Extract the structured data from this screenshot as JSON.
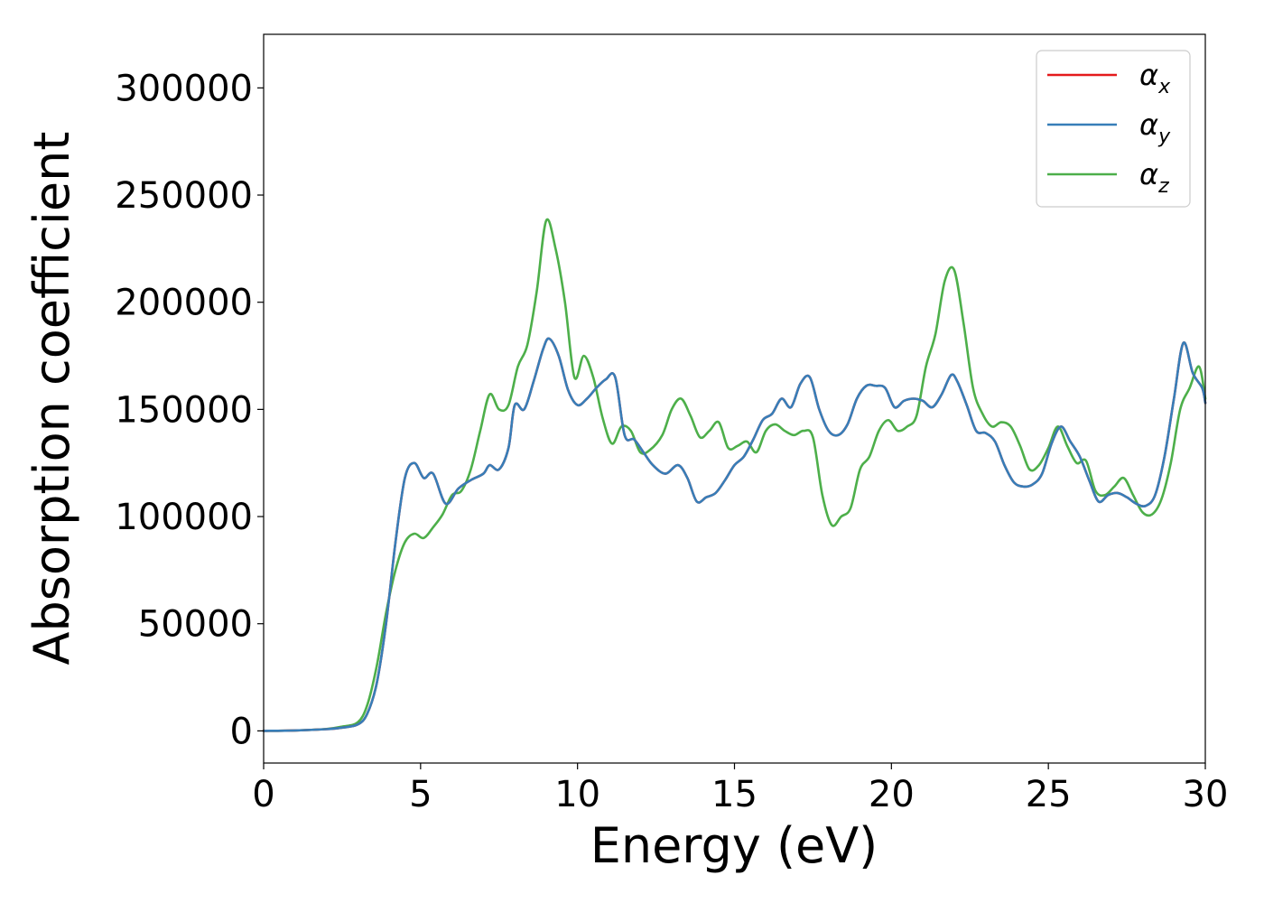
{
  "chart_data": {
    "type": "line",
    "title": "",
    "xlabel": "Energy (eV)",
    "ylabel": "Absorption coefficient",
    "xlim": [
      0,
      30
    ],
    "ylim": [
      -15000,
      325000
    ],
    "xticks": [
      0,
      5,
      10,
      15,
      20,
      25,
      30
    ],
    "yticks": [
      0,
      50000,
      100000,
      150000,
      200000,
      250000,
      300000
    ],
    "grid": false,
    "legend_position": "top-right",
    "series": [
      {
        "name": "α",
        "subscript": "x",
        "color": "#e41a1c",
        "x": [
          0,
          1,
          2,
          2.5,
          3,
          3.3,
          3.6,
          3.9,
          4.2,
          4.5,
          4.8,
          5.1,
          5.4,
          5.8,
          6.2,
          6.6,
          7.0,
          7.2,
          7.5,
          7.8,
          8.0,
          8.3,
          8.6,
          8.9,
          9.1,
          9.4,
          9.7,
          10.0,
          10.3,
          10.6,
          10.9,
          11.2,
          11.5,
          11.8,
          12.1,
          12.4,
          12.8,
          13.2,
          13.5,
          13.8,
          14.1,
          14.4,
          14.7,
          15.0,
          15.3,
          15.6,
          15.9,
          16.2,
          16.5,
          16.8,
          17.1,
          17.4,
          17.7,
          18.0,
          18.3,
          18.6,
          18.9,
          19.2,
          19.5,
          19.8,
          20.1,
          20.4,
          20.7,
          21.0,
          21.3,
          21.6,
          21.9,
          22.1,
          22.4,
          22.7,
          23.0,
          23.3,
          23.6,
          23.9,
          24.2,
          24.5,
          24.8,
          25.1,
          25.4,
          25.7,
          26.0,
          26.3,
          26.6,
          26.9,
          27.2,
          27.5,
          27.8,
          28.1,
          28.4,
          28.7,
          29.0,
          29.3,
          29.6,
          29.9,
          30.0
        ],
        "y": [
          0,
          200,
          800,
          1500,
          3000,
          8000,
          22000,
          50000,
          88000,
          118000,
          125000,
          118000,
          120000,
          106000,
          113000,
          117000,
          120000,
          124000,
          122000,
          132000,
          152000,
          150000,
          163000,
          178000,
          183000,
          175000,
          159000,
          152000,
          155000,
          160000,
          164000,
          165000,
          138000,
          136000,
          130000,
          124000,
          120000,
          124000,
          118000,
          107000,
          109000,
          111000,
          117000,
          124000,
          128000,
          136000,
          145000,
          148000,
          155000,
          151000,
          162000,
          165000,
          150000,
          140000,
          138000,
          143000,
          155000,
          161000,
          161000,
          160000,
          151000,
          154000,
          155000,
          154000,
          151000,
          157000,
          166000,
          163000,
          152000,
          140000,
          139000,
          135000,
          124000,
          116000,
          114000,
          115000,
          120000,
          134000,
          142000,
          135000,
          128000,
          117000,
          107000,
          110000,
          111000,
          109000,
          106000,
          105000,
          110000,
          128000,
          155000,
          181000,
          167000,
          160000,
          153000
        ]
      },
      {
        "name": "α",
        "subscript": "y",
        "color": "#377eb8",
        "x": [
          0,
          1,
          2,
          2.5,
          3,
          3.3,
          3.6,
          3.9,
          4.2,
          4.5,
          4.8,
          5.1,
          5.4,
          5.8,
          6.2,
          6.6,
          7.0,
          7.2,
          7.5,
          7.8,
          8.0,
          8.3,
          8.6,
          8.9,
          9.1,
          9.4,
          9.7,
          10.0,
          10.3,
          10.6,
          10.9,
          11.2,
          11.5,
          11.8,
          12.1,
          12.4,
          12.8,
          13.2,
          13.5,
          13.8,
          14.1,
          14.4,
          14.7,
          15.0,
          15.3,
          15.6,
          15.9,
          16.2,
          16.5,
          16.8,
          17.1,
          17.4,
          17.7,
          18.0,
          18.3,
          18.6,
          18.9,
          19.2,
          19.5,
          19.8,
          20.1,
          20.4,
          20.7,
          21.0,
          21.3,
          21.6,
          21.9,
          22.1,
          22.4,
          22.7,
          23.0,
          23.3,
          23.6,
          23.9,
          24.2,
          24.5,
          24.8,
          25.1,
          25.4,
          25.7,
          26.0,
          26.3,
          26.6,
          26.9,
          27.2,
          27.5,
          27.8,
          28.1,
          28.4,
          28.7,
          29.0,
          29.3,
          29.6,
          29.9,
          30.0
        ],
        "y": [
          0,
          200,
          800,
          1500,
          3000,
          8000,
          22000,
          50000,
          88000,
          118000,
          125000,
          118000,
          120000,
          106000,
          113000,
          117000,
          120000,
          124000,
          122000,
          132000,
          152000,
          150000,
          163000,
          178000,
          183000,
          175000,
          159000,
          152000,
          155000,
          160000,
          164000,
          165000,
          138000,
          136000,
          130000,
          124000,
          120000,
          124000,
          118000,
          107000,
          109000,
          111000,
          117000,
          124000,
          128000,
          136000,
          145000,
          148000,
          155000,
          151000,
          162000,
          165000,
          150000,
          140000,
          138000,
          143000,
          155000,
          161000,
          161000,
          160000,
          151000,
          154000,
          155000,
          154000,
          151000,
          157000,
          166000,
          163000,
          152000,
          140000,
          139000,
          135000,
          124000,
          116000,
          114000,
          115000,
          120000,
          134000,
          142000,
          135000,
          128000,
          117000,
          107000,
          110000,
          111000,
          109000,
          106000,
          105000,
          110000,
          128000,
          155000,
          181000,
          167000,
          160000,
          153000
        ]
      },
      {
        "name": "α",
        "subscript": "z",
        "color": "#4daf4a",
        "x": [
          0,
          1,
          2,
          2.5,
          3,
          3.3,
          3.6,
          3.9,
          4.2,
          4.5,
          4.8,
          5.1,
          5.4,
          5.7,
          6.0,
          6.3,
          6.6,
          6.9,
          7.2,
          7.5,
          7.8,
          8.1,
          8.4,
          8.7,
          9.0,
          9.3,
          9.6,
          9.9,
          10.2,
          10.5,
          10.8,
          11.1,
          11.4,
          11.7,
          12.0,
          12.3,
          12.7,
          13.0,
          13.3,
          13.6,
          13.9,
          14.2,
          14.5,
          14.8,
          15.1,
          15.4,
          15.7,
          16.0,
          16.3,
          16.6,
          16.9,
          17.2,
          17.5,
          17.8,
          18.1,
          18.4,
          18.7,
          19.0,
          19.3,
          19.6,
          19.9,
          20.2,
          20.5,
          20.8,
          21.1,
          21.4,
          21.7,
          22.0,
          22.3,
          22.6,
          22.9,
          23.2,
          23.5,
          23.8,
          24.1,
          24.4,
          24.7,
          25.0,
          25.3,
          25.6,
          25.9,
          26.2,
          26.5,
          26.8,
          27.1,
          27.4,
          27.7,
          28.0,
          28.3,
          28.6,
          28.9,
          29.2,
          29.5,
          29.8,
          30.0
        ],
        "y": [
          0,
          200,
          900,
          2000,
          4000,
          12000,
          30000,
          55000,
          75000,
          88000,
          92000,
          90000,
          95000,
          101000,
          110000,
          112000,
          122000,
          140000,
          157000,
          150000,
          152000,
          170000,
          180000,
          205000,
          238000,
          225000,
          200000,
          165000,
          175000,
          165000,
          146000,
          134000,
          142000,
          140000,
          130000,
          131000,
          138000,
          150000,
          155000,
          147000,
          137000,
          140000,
          144000,
          132000,
          133000,
          135000,
          130000,
          140000,
          143000,
          140000,
          138000,
          140000,
          137000,
          110000,
          96000,
          100000,
          104000,
          122000,
          128000,
          140000,
          145000,
          140000,
          142000,
          147000,
          170000,
          185000,
          210000,
          215000,
          190000,
          160000,
          148000,
          142000,
          144000,
          142000,
          133000,
          122000,
          124000,
          132000,
          142000,
          133000,
          125000,
          126000,
          112000,
          110000,
          114000,
          118000,
          110000,
          102000,
          101000,
          108000,
          125000,
          150000,
          160000,
          170000,
          155000
        ]
      }
    ]
  }
}
